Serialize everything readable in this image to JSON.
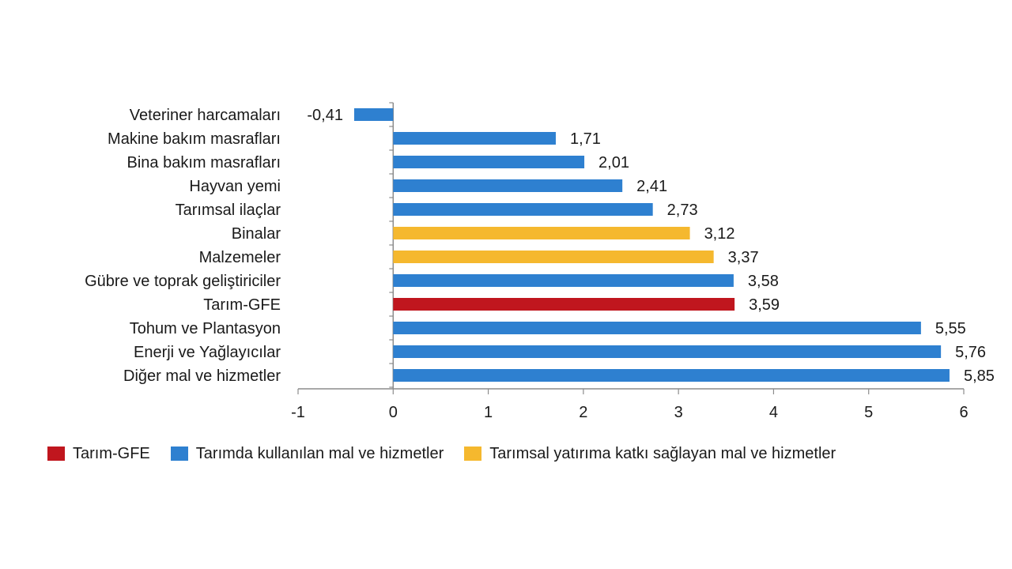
{
  "chart_data": {
    "type": "bar",
    "orientation": "horizontal",
    "categories": [
      "Veteriner harcamaları",
      "Makine bakım masrafları",
      "Bina bakım masrafları",
      "Hayvan yemi",
      "Tarımsal ilaçlar",
      "Binalar",
      "Malzemeler",
      "Gübre ve toprak geliştiriciler",
      "Tarım-GFE",
      "Tohum ve Plantasyon",
      "Enerji  ve Yağlayıcılar",
      "Diğer mal ve hizmetler"
    ],
    "values": [
      -0.41,
      1.71,
      2.01,
      2.41,
      2.73,
      3.12,
      3.37,
      3.58,
      3.59,
      5.55,
      5.76,
      5.85
    ],
    "value_labels": [
      "-0,41",
      "1,71",
      "2,01",
      "2,41",
      "2,73",
      "3,12",
      "3,37",
      "3,58",
      "3,59",
      "5,55",
      "5,76",
      "5,85"
    ],
    "groups": [
      "inputs",
      "inputs",
      "inputs",
      "inputs",
      "inputs",
      "investment",
      "investment",
      "inputs",
      "index",
      "inputs",
      "inputs",
      "inputs"
    ],
    "xlim": [
      -1,
      6
    ],
    "xticks": [
      -1,
      0,
      1,
      2,
      3,
      4,
      5,
      6
    ],
    "xtick_labels": [
      "-1",
      "0",
      "1",
      "2",
      "3",
      "4",
      "5",
      "6"
    ],
    "grid": false,
    "legend_position": "bottom"
  },
  "legend": [
    {
      "key": "index",
      "label": "Tarım-GFE",
      "color": "#c0161e"
    },
    {
      "key": "inputs",
      "label": "Tarımda kullanılan mal ve hizmetler",
      "color": "#2e80d0"
    },
    {
      "key": "investment",
      "label": "Tarımsal yatırıma katkı sağlayan mal ve hizmetler",
      "color": "#f5b82e"
    }
  ],
  "colors": {
    "index": "#c0161e",
    "inputs": "#2e80d0",
    "investment": "#f5b82e",
    "axis": "#8c8c8c"
  }
}
